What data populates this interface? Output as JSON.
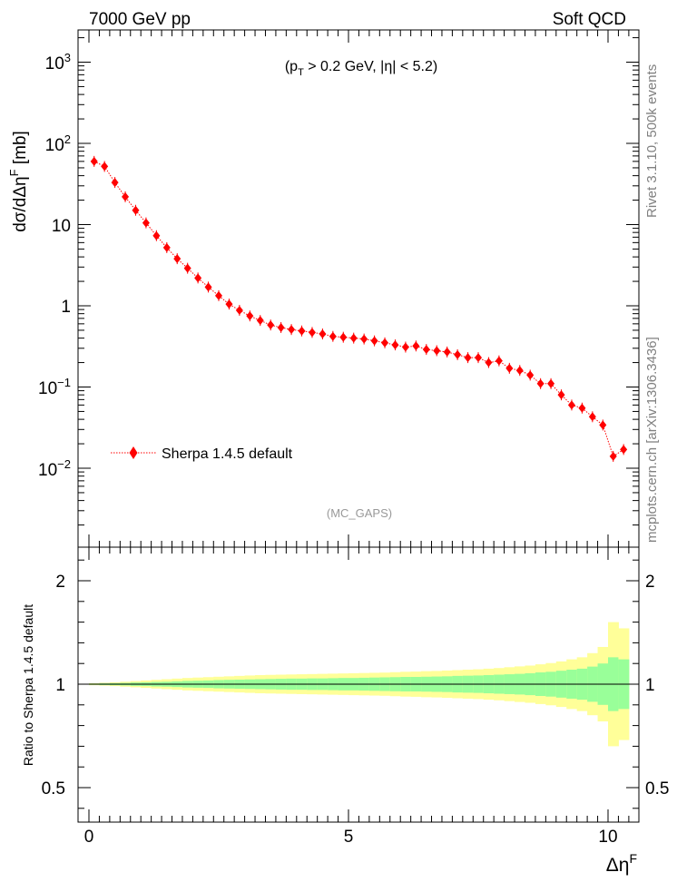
{
  "header": {
    "left_title": "7000 GeV pp",
    "right_title": "Soft QCD"
  },
  "side_labels": {
    "rivet": "Rivet 3.1.10,  500k events",
    "mcplots": "mcplots.cern.ch [arXiv:1306.3436]"
  },
  "chart_data": [
    {
      "type": "line",
      "title": "(p_T > 0.2 GeV, |η| < 5.2)",
      "watermark": "(MC_GAPS)",
      "ylabel": "dσ/dΔη^F [mb]",
      "xlabel": "",
      "yscale": "log",
      "ylim": [
        0.0012,
        2500
      ],
      "xlim": [
        -0.2,
        10.6
      ],
      "y_ticks": [
        "10^-2",
        "10^-1",
        "1",
        "10",
        "10^2",
        "10^3"
      ],
      "legend": {
        "placement": "left-lower"
      },
      "series": [
        {
          "name": "Sherpa 1.4.5 default",
          "color": "#ff0000",
          "marker": "diamond",
          "x": [
            0.1,
            0.3,
            0.5,
            0.7,
            0.9,
            1.1,
            1.3,
            1.5,
            1.7,
            1.9,
            2.1,
            2.3,
            2.5,
            2.7,
            2.9,
            3.1,
            3.3,
            3.5,
            3.7,
            3.9,
            4.1,
            4.3,
            4.5,
            4.7,
            4.9,
            5.1,
            5.3,
            5.5,
            5.7,
            5.9,
            6.1,
            6.3,
            6.5,
            6.7,
            6.9,
            7.1,
            7.3,
            7.5,
            7.7,
            7.9,
            8.1,
            8.3,
            8.5,
            8.7,
            8.9,
            9.1,
            9.3,
            9.5,
            9.7,
            9.9,
            10.1,
            10.3
          ],
          "values": [
            60,
            52,
            33,
            22,
            15,
            10.5,
            7.3,
            5.2,
            3.8,
            2.9,
            2.2,
            1.7,
            1.33,
            1.05,
            0.88,
            0.75,
            0.66,
            0.58,
            0.54,
            0.51,
            0.49,
            0.47,
            0.45,
            0.42,
            0.41,
            0.4,
            0.39,
            0.37,
            0.35,
            0.33,
            0.31,
            0.32,
            0.29,
            0.28,
            0.27,
            0.25,
            0.23,
            0.23,
            0.2,
            0.21,
            0.17,
            0.16,
            0.14,
            0.11,
            0.11,
            0.08,
            0.06,
            0.055,
            0.043,
            0.034,
            0.014,
            0.017
          ]
        }
      ]
    },
    {
      "type": "area",
      "ylabel": "Ratio to Sherpa 1.4.5 default",
      "xlabel": "Δη^F",
      "ylim": [
        0.33,
        2.33
      ],
      "xlim": [
        -0.2,
        10.6
      ],
      "x_ticks": [
        "0",
        "5",
        "10"
      ],
      "y_ticks": [
        "0.5",
        "1",
        "2"
      ],
      "reference_line": 1,
      "band_colors": {
        "inner": "#99ff99",
        "outer": "#ffff99",
        "line": "#000000"
      },
      "bins": [
        0.0,
        0.2,
        0.4,
        0.6,
        0.8,
        1.0,
        1.2,
        1.4,
        1.6,
        1.8,
        2.0,
        2.2,
        2.4,
        2.6,
        2.8,
        3.0,
        3.2,
        3.4,
        3.6,
        3.8,
        4.0,
        4.2,
        4.4,
        4.6,
        4.8,
        5.0,
        5.2,
        5.4,
        5.6,
        5.8,
        6.0,
        6.2,
        6.4,
        6.6,
        6.8,
        7.0,
        7.2,
        7.4,
        7.6,
        7.8,
        8.0,
        8.2,
        8.4,
        8.6,
        8.8,
        9.0,
        9.2,
        9.4,
        9.6,
        9.8,
        10.0,
        10.2,
        10.4
      ],
      "inner_halfwidth": [
        0.003,
        0.004,
        0.005,
        0.006,
        0.008,
        0.009,
        0.011,
        0.012,
        0.014,
        0.016,
        0.017,
        0.018,
        0.02,
        0.021,
        0.022,
        0.023,
        0.024,
        0.025,
        0.026,
        0.027,
        0.027,
        0.028,
        0.028,
        0.029,
        0.03,
        0.03,
        0.031,
        0.032,
        0.033,
        0.034,
        0.035,
        0.035,
        0.036,
        0.037,
        0.038,
        0.04,
        0.041,
        0.042,
        0.044,
        0.046,
        0.048,
        0.05,
        0.053,
        0.057,
        0.06,
        0.065,
        0.07,
        0.075,
        0.085,
        0.1,
        0.13,
        0.12
      ],
      "outer_halfwidth": [
        0.005,
        0.007,
        0.009,
        0.012,
        0.015,
        0.018,
        0.021,
        0.024,
        0.027,
        0.03,
        0.032,
        0.034,
        0.036,
        0.038,
        0.04,
        0.042,
        0.044,
        0.045,
        0.046,
        0.047,
        0.048,
        0.049,
        0.05,
        0.051,
        0.052,
        0.053,
        0.054,
        0.055,
        0.056,
        0.058,
        0.06,
        0.061,
        0.063,
        0.064,
        0.066,
        0.068,
        0.07,
        0.072,
        0.075,
        0.078,
        0.082,
        0.086,
        0.09,
        0.096,
        0.102,
        0.11,
        0.12,
        0.13,
        0.15,
        0.18,
        0.3,
        0.27
      ]
    }
  ]
}
